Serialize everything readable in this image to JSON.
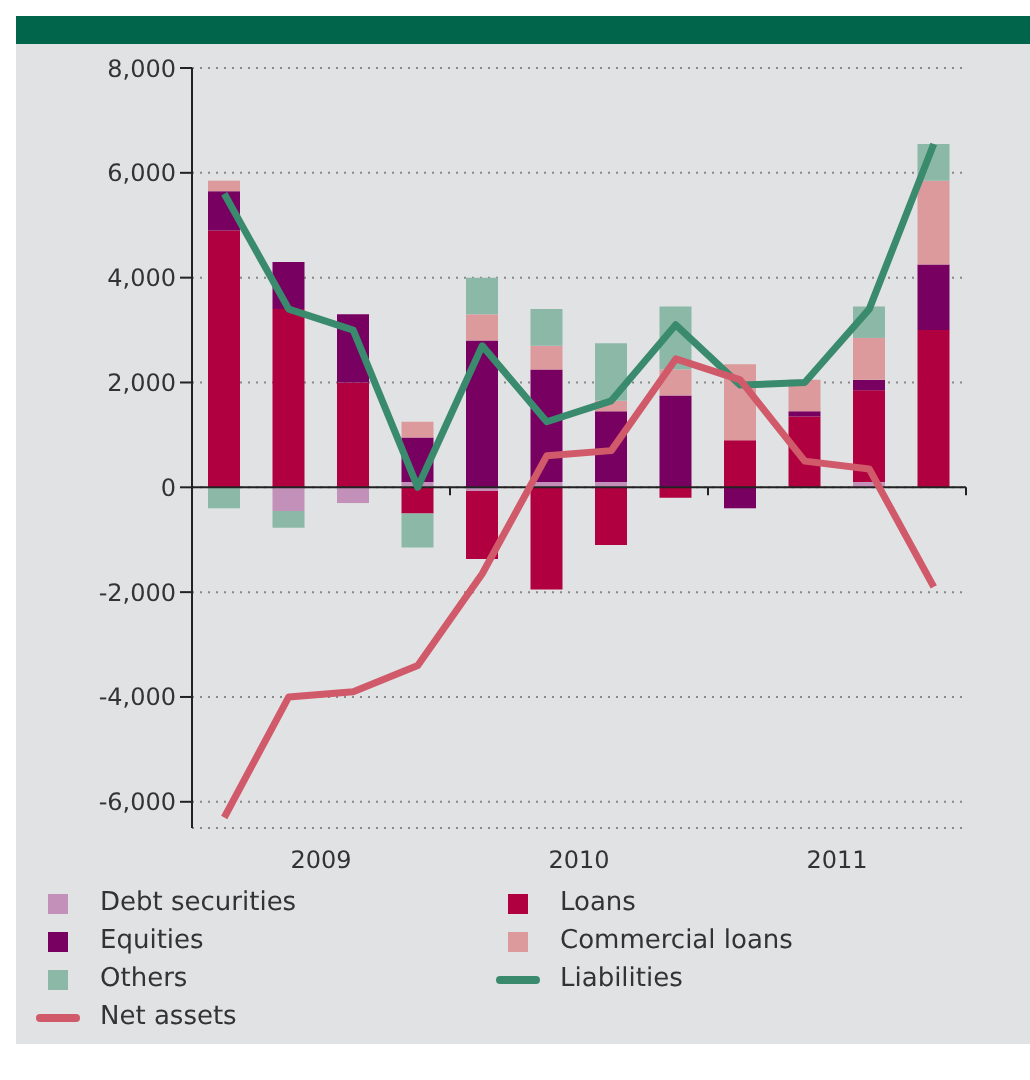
{
  "chart_data": {
    "type": "bar",
    "stacked": true,
    "x": [
      2009.125,
      2009.375,
      2009.625,
      2009.875,
      2010.125,
      2010.375,
      2010.625,
      2010.875,
      2011.125,
      2011.375,
      2011.625,
      2011.875
    ],
    "xlim": [
      2009,
      2012
    ],
    "xticks": [
      {
        "value": 2009,
        "label": null
      },
      {
        "value": 2009.5,
        "label": "2009"
      },
      {
        "value": 2010,
        "label": null
      },
      {
        "value": 2010.5,
        "label": "2010"
      },
      {
        "value": 2011,
        "label": null
      },
      {
        "value": 2011.5,
        "label": "2011"
      },
      {
        "value": 2012,
        "label": null
      }
    ],
    "ylim": [
      -6500,
      8000
    ],
    "yticks": [
      {
        "value": -6000,
        "label": "-6,000"
      },
      {
        "value": -4000,
        "label": "-4,000"
      },
      {
        "value": -2000,
        "label": "-2,000"
      },
      {
        "value": 0,
        "label": "0"
      },
      {
        "value": 2000,
        "label": "2,000"
      },
      {
        "value": 4000,
        "label": "4,000"
      },
      {
        "value": 6000,
        "label": "6,000"
      },
      {
        "value": 8000,
        "label": "8,000"
      }
    ],
    "grid": "y",
    "legend": "bottom",
    "marker": "none",
    "line_style": "solid",
    "series": [
      {
        "name": "Debt securities",
        "color": "#c290b8",
        "values": [
          0,
          -450,
          -300,
          100,
          -70,
          100,
          100,
          0,
          0,
          0,
          100,
          0
        ]
      },
      {
        "name": "Loans",
        "color": "#b1003f",
        "values": [
          4900,
          3400,
          2000,
          -500,
          -1300,
          -1950,
          -1100,
          -200,
          900,
          1350,
          1750,
          3000
        ]
      },
      {
        "name": "Equities",
        "color": "#780060",
        "values": [
          750,
          900,
          1300,
          850,
          2800,
          2150,
          1350,
          1750,
          -400,
          100,
          200,
          1250
        ]
      },
      {
        "name": "Commercial loans",
        "color": "#dd9a9d",
        "values": [
          200,
          0,
          0,
          300,
          500,
          450,
          200,
          500,
          1450,
          600,
          800,
          1600
        ]
      },
      {
        "name": "Others",
        "color": "#8cb8a8",
        "values": [
          -400,
          -320,
          0,
          -650,
          700,
          700,
          1100,
          1200,
          0,
          0,
          600,
          700
        ]
      },
      {
        "name": "Liabilities",
        "type": "line",
        "color": "#3a8a6e",
        "values": [
          5600,
          3400,
          3000,
          0,
          2700,
          1250,
          1650,
          3100,
          1950,
          2000,
          3400,
          6550
        ]
      },
      {
        "name": "Net assets",
        "type": "line",
        "color": "#d05a6a",
        "values": [
          -6300,
          -4000,
          -3900,
          -3400,
          -1650,
          600,
          700,
          2450,
          2050,
          500,
          350,
          -1900
        ]
      }
    ]
  }
}
